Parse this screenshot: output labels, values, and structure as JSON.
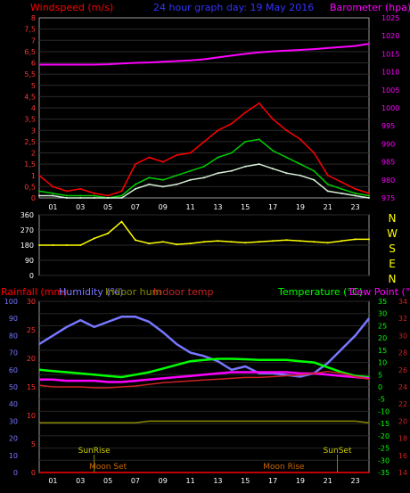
{
  "header": {
    "wind_label": "Windspeed (m/s)",
    "title": "24 hour graph day: 19 May 2016",
    "baro_label": "Barometer (hpa)"
  },
  "wind_ticks": [
    "0",
    "0,5",
    "1",
    "1,5",
    "2",
    "2,5",
    "3",
    "3,5",
    "4",
    "4,5",
    "5",
    "5,5",
    "6",
    "6,5",
    "7",
    "7,5",
    "8"
  ],
  "baro_ticks": [
    "975",
    "980",
    "985",
    "990",
    "995",
    "1000",
    "1005",
    "1010",
    "1015",
    "1020",
    "1025"
  ],
  "hour_ticks": [
    "01",
    "03",
    "05",
    "07",
    "09",
    "11",
    "13",
    "15",
    "17",
    "19",
    "21",
    "23"
  ],
  "dir_ticks": [
    "360",
    "270",
    "180",
    "90",
    "0"
  ],
  "compass": [
    "N",
    "W",
    "S",
    "E",
    "N"
  ],
  "lower_headers": {
    "rain": "Rainfall (mm)",
    "humidity": "Humidity (%)",
    "indoor_hum": "Indoor hum",
    "indoor_temp": "Indoor temp",
    "temperature": "Temperature (°C)",
    "dew_point": "Dew Point (°C)"
  },
  "rain_ticks": [
    "0",
    "5",
    "10",
    "15",
    "20",
    "25",
    "30"
  ],
  "hum_ticks": [
    "0",
    "10",
    "20",
    "30",
    "40",
    "50",
    "60",
    "70",
    "80",
    "90",
    "100"
  ],
  "temp_ticks": [
    "35",
    "30",
    "25",
    "20",
    "15",
    "10",
    "5",
    "0",
    "-5",
    "-10",
    "-15",
    "-20",
    "-25",
    "-30",
    "-35"
  ],
  "indoor_ticks": [
    "14",
    "16",
    "18",
    "20",
    "22",
    "24",
    "26",
    "28",
    "30",
    "32",
    "34"
  ],
  "annotations": {
    "sunrise": "SunRise",
    "sunset": "SunSet",
    "moonset": "Moon Set",
    "moonrise": "Moon Rise"
  },
  "colors": {
    "wind": "#ff0000",
    "gust_avg": "#00cc00",
    "wind_avg": "#d8f0d8",
    "barometer": "#ff00ff",
    "direction": "#ffff00",
    "humidity": "#7777ff",
    "temperature": "#00ff00",
    "dewpoint": "#ff00ff",
    "indoor_temp": "#cc2222",
    "indoor_hum": "#888800",
    "rain": "#ff0000"
  },
  "chart_data": [
    {
      "type": "line",
      "title": "24 hour graph day: 19 May 2016",
      "xlabel": "",
      "ylabel": "Windspeed (m/s)",
      "y2label": "Barometer (hpa)",
      "ylim": [
        0,
        8
      ],
      "y2lim": [
        975,
        1025
      ],
      "hours": [
        0,
        1,
        2,
        3,
        4,
        5,
        6,
        7,
        8,
        9,
        10,
        11,
        12,
        13,
        14,
        15,
        16,
        17,
        18,
        19,
        20,
        21,
        22,
        23,
        24
      ],
      "series": [
        {
          "name": "Windspeed",
          "values": [
            1.0,
            0.5,
            0.3,
            0.4,
            0.2,
            0.1,
            0.3,
            1.5,
            1.8,
            1.6,
            1.9,
            2.0,
            2.5,
            3.0,
            3.3,
            3.8,
            4.2,
            3.5,
            3.0,
            2.6,
            2.0,
            1.0,
            0.7,
            0.4,
            0.2
          ]
        },
        {
          "name": "Gust avg",
          "values": [
            0.3,
            0.2,
            0.1,
            0.1,
            0.1,
            0.0,
            0.1,
            0.6,
            0.9,
            0.8,
            1.0,
            1.2,
            1.4,
            1.8,
            2.0,
            2.5,
            2.6,
            2.1,
            1.8,
            1.5,
            1.2,
            0.6,
            0.4,
            0.2,
            0.1
          ]
        },
        {
          "name": "Wind avg",
          "values": [
            0.1,
            0.1,
            0.0,
            0.0,
            0.0,
            0.0,
            0.0,
            0.4,
            0.6,
            0.5,
            0.6,
            0.8,
            0.9,
            1.1,
            1.2,
            1.4,
            1.5,
            1.3,
            1.1,
            1.0,
            0.8,
            0.3,
            0.2,
            0.1,
            0.0
          ]
        },
        {
          "name": "Barometer",
          "axis": "y2",
          "values": [
            1012.0,
            1012.0,
            1012.0,
            1012.0,
            1012.0,
            1012.1,
            1012.3,
            1012.5,
            1012.6,
            1012.8,
            1013.0,
            1013.2,
            1013.5,
            1014.0,
            1014.5,
            1015.0,
            1015.4,
            1015.7,
            1015.9,
            1016.1,
            1016.3,
            1016.6,
            1016.9,
            1017.2,
            1017.8
          ]
        }
      ]
    },
    {
      "type": "line",
      "ylabel": "Wind direction",
      "ylim": [
        0,
        360
      ],
      "hours": [
        0,
        1,
        2,
        3,
        4,
        5,
        6,
        7,
        8,
        9,
        10,
        11,
        12,
        13,
        14,
        15,
        16,
        17,
        18,
        19,
        20,
        21,
        22,
        23,
        24
      ],
      "series": [
        {
          "name": "Direction",
          "values": [
            180,
            180,
            180,
            180,
            220,
            250,
            320,
            210,
            190,
            200,
            185,
            190,
            200,
            205,
            200,
            195,
            200,
            205,
            210,
            205,
            200,
            195,
            205,
            215,
            215
          ]
        }
      ]
    },
    {
      "type": "line",
      "ylim": [
        0,
        100
      ],
      "hours": [
        0,
        1,
        2,
        3,
        4,
        5,
        6,
        7,
        8,
        9,
        10,
        11,
        12,
        13,
        14,
        15,
        16,
        17,
        18,
        19,
        20,
        21,
        22,
        23,
        24
      ],
      "series": [
        {
          "name": "Humidity (%)",
          "axis": "humidity",
          "values": [
            75,
            80,
            85,
            89,
            85,
            88,
            91,
            91,
            88,
            82,
            75,
            70,
            68,
            65,
            60,
            62,
            58,
            58,
            57,
            56,
            58,
            64,
            72,
            80,
            90
          ]
        },
        {
          "name": "Temperature (°C)",
          "axis": "temperature",
          "values": [
            7.0,
            6.5,
            6.0,
            5.5,
            5.0,
            4.5,
            4.0,
            5.0,
            6.0,
            7.5,
            9.0,
            10.5,
            11.0,
            11.5,
            11.5,
            11.3,
            11.0,
            11.0,
            11.0,
            10.5,
            10.0,
            8.0,
            6.0,
            4.5,
            4.0
          ]
        },
        {
          "name": "Dew Point (°C)",
          "axis": "temperature",
          "values": [
            3.0,
            3.0,
            2.5,
            2.5,
            2.5,
            2.0,
            2.0,
            2.5,
            3.0,
            3.5,
            4.0,
            4.5,
            5.0,
            5.5,
            6.0,
            6.0,
            6.0,
            6.0,
            6.0,
            5.5,
            5.5,
            5.0,
            4.5,
            4.0,
            3.5
          ]
        },
        {
          "name": "Indoor temp",
          "axis": "indoor",
          "values": [
            24.2,
            24.0,
            24.0,
            24.0,
            23.9,
            23.9,
            24.0,
            24.1,
            24.3,
            24.5,
            24.6,
            24.7,
            24.8,
            24.9,
            25.0,
            25.1,
            25.1,
            25.2,
            25.3,
            25.4,
            25.6,
            25.8,
            25.6,
            25.2,
            24.9
          ]
        },
        {
          "name": "Indoor hum",
          "axis": "humidity",
          "values": [
            29,
            29,
            29,
            29,
            29,
            29,
            29,
            29,
            30,
            30,
            30,
            30,
            30,
            30,
            30,
            30,
            30,
            30,
            30,
            30,
            30,
            30,
            30,
            30,
            29
          ]
        },
        {
          "name": "Rainfall (mm)",
          "axis": "rain",
          "values": [
            0,
            0,
            0,
            0,
            0,
            0,
            0,
            0,
            0,
            0,
            0,
            0,
            0,
            0,
            0,
            0,
            0,
            0,
            0,
            0,
            0,
            0,
            0,
            0,
            0
          ]
        }
      ],
      "events": {
        "sunrise": 4.0,
        "sunset": 21.7,
        "moonset": 5.0,
        "moonrise": 17.8
      }
    }
  ]
}
